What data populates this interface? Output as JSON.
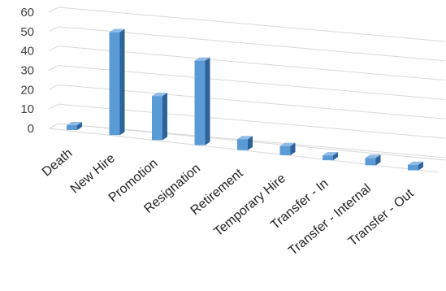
{
  "chart_data": {
    "type": "bar",
    "title": "",
    "xlabel": "",
    "ylabel": "",
    "ylim": [
      0,
      60
    ],
    "yticks": [
      0,
      10,
      20,
      30,
      40,
      50,
      60
    ],
    "grid": true,
    "legend": "none",
    "perspective": "3d",
    "categories": [
      "Death",
      "New Hire",
      "Promotion",
      "Resignation",
      "Retirement",
      "Temporary Hire",
      "Transfer - In",
      "Transfer - Internal",
      "Transfer - Out"
    ],
    "values": [
      2,
      56,
      24,
      46,
      6,
      5,
      2,
      4,
      3
    ],
    "colors": {
      "bar_front": "#5b9bd5",
      "bar_side": "#2e6399",
      "bar_top": "#8fbbe6",
      "grid": "#d9d9d9"
    }
  }
}
